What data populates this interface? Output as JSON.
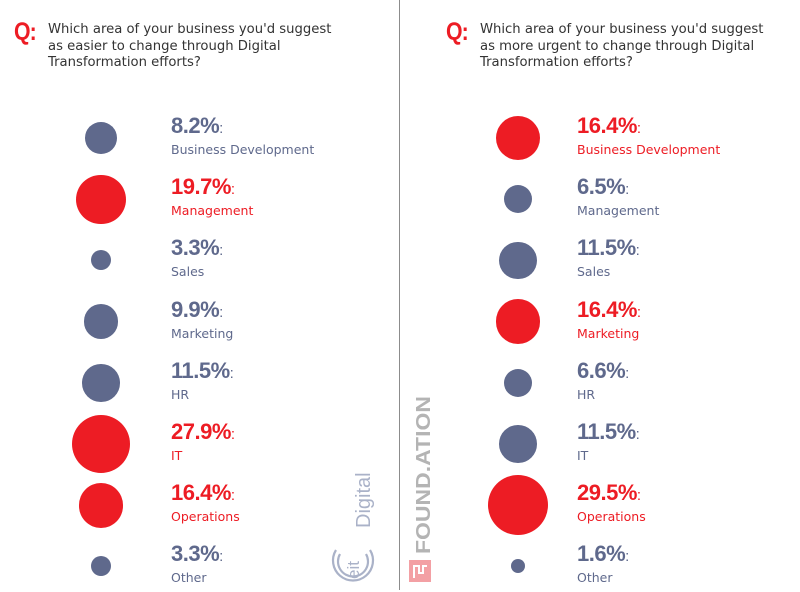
{
  "colors": {
    "highlight": "#ed1c24",
    "normal": "#5f698c",
    "question_text": "#333333",
    "divider": "#8c8c8c"
  },
  "panels": [
    {
      "q_mark": "Q:",
      "question_lines": [
        "Which area of your business you'd suggest",
        "as easier to change through Digital",
        "Transformation efforts?"
      ]
    },
    {
      "q_mark": "Q:",
      "question_lines": [
        "Which area of your business you'd suggest",
        "as more urgent to change through Digital",
        "Transformation efforts?"
      ]
    }
  ],
  "logos": {
    "eit_text": "eit",
    "eit_digital": "Digital",
    "foundation": "FOUND.ATION"
  },
  "chart_data": [
    {
      "type": "bubble-list",
      "title": "Which area of your business you'd suggest as easier to change through Digital Transformation efforts?",
      "categories": [
        "Business Development",
        "Management",
        "Sales",
        "Marketing",
        "HR",
        "IT",
        "Operations",
        "Other"
      ],
      "value_labels": [
        "8.2%",
        "19.7%",
        "3.3%",
        "9.9%",
        "11.5%",
        "27.9%",
        "16.4%",
        "3.3%"
      ],
      "values": [
        8.2,
        19.7,
        3.3,
        9.9,
        11.5,
        27.9,
        16.4,
        3.3
      ],
      "highlighted": [
        false,
        true,
        false,
        false,
        false,
        true,
        true,
        false
      ],
      "unit": "%"
    },
    {
      "type": "bubble-list",
      "title": "Which area of your business you'd suggest as more urgent to change through Digital Transformation efforts?",
      "categories": [
        "Business Development",
        "Management",
        "Sales",
        "Marketing",
        "HR",
        "IT",
        "Operations",
        "Other"
      ],
      "value_labels": [
        "16.4%",
        "6.5%",
        "11.5%",
        "16.4%",
        "6.6%",
        "11.5%",
        "29.5%",
        "1.6%"
      ],
      "values": [
        16.4,
        6.5,
        11.5,
        16.4,
        6.6,
        11.5,
        29.5,
        1.6
      ],
      "highlighted": [
        true,
        false,
        false,
        true,
        false,
        false,
        true,
        false
      ],
      "unit": "%"
    }
  ]
}
